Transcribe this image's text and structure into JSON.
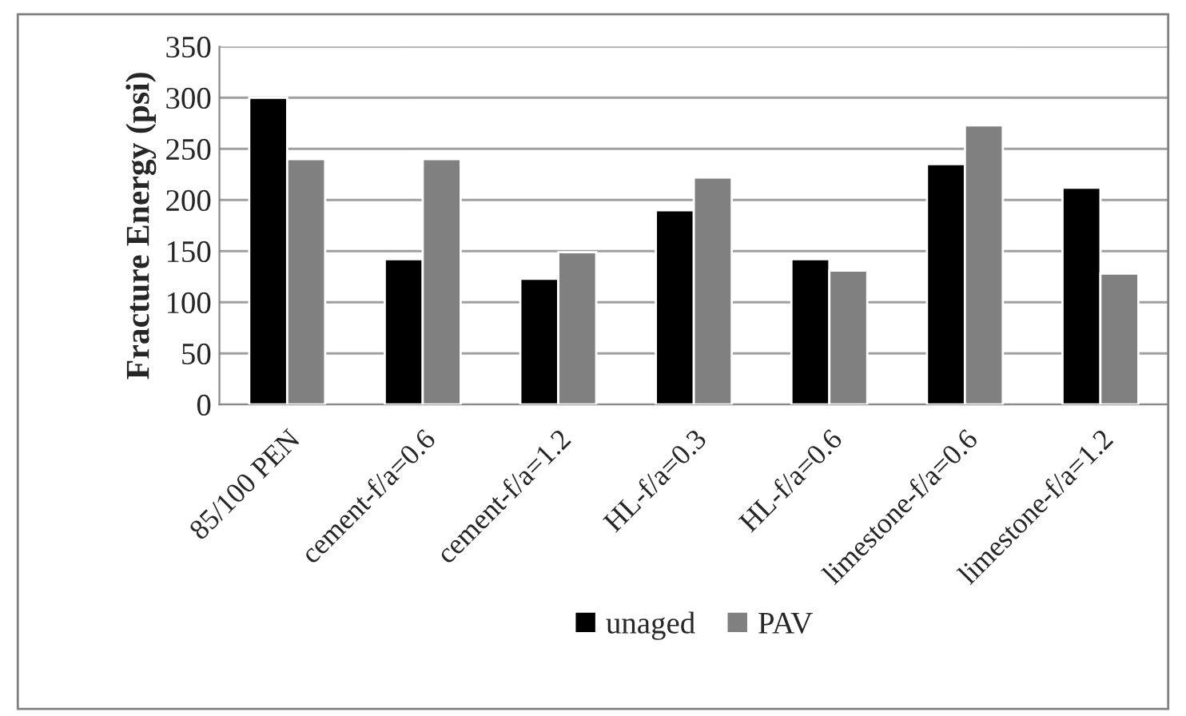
{
  "chart_data": {
    "type": "bar",
    "ylabel": "Fracture Energy (psi)",
    "categories": [
      "85/100 PEN",
      "cement-f/a=0.6",
      "cement-f/a=1.2",
      "HL-f/a=0.3",
      "HL-f/a=0.6",
      "limestone-f/a=0.6",
      "limestone-f/a=1.2"
    ],
    "series": [
      {
        "name": "unaged",
        "color": "#000000",
        "values": [
          300,
          142,
          123,
          190,
          142,
          235,
          212
        ]
      },
      {
        "name": "PAV",
        "color": "#808080",
        "values": [
          240,
          240,
          149,
          222,
          131,
          273,
          128
        ]
      }
    ],
    "ylim": [
      0,
      350
    ],
    "yticks": [
      0,
      50,
      100,
      150,
      200,
      250,
      300,
      350
    ],
    "grid": "y",
    "legend": "bottom"
  }
}
